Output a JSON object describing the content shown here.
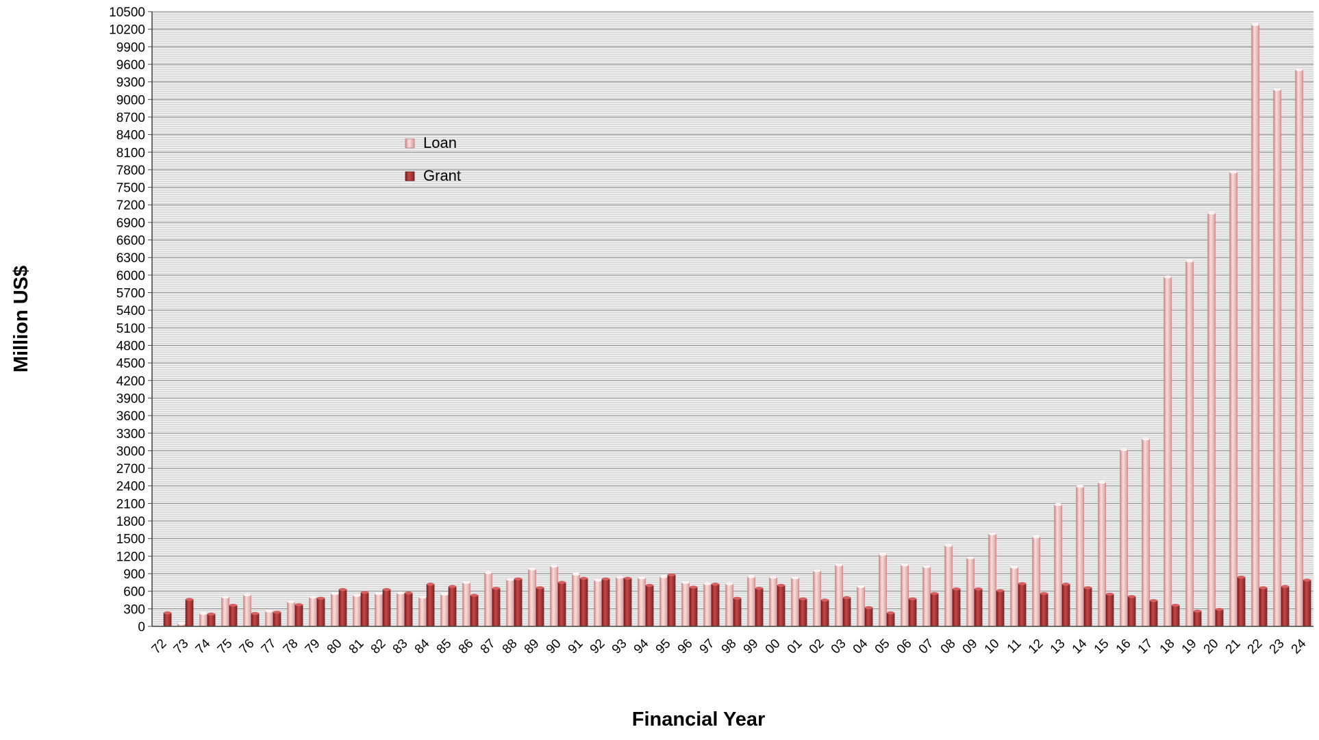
{
  "chart_data": {
    "type": "bar",
    "xlabel": "Financial Year",
    "ylabel": "Million US$",
    "ylim": [
      0,
      10500
    ],
    "y_ticks": [
      0,
      300,
      600,
      900,
      1200,
      1500,
      1800,
      2100,
      2400,
      2700,
      3000,
      3300,
      3600,
      3900,
      4200,
      4500,
      4800,
      5100,
      5400,
      5700,
      6000,
      6300,
      6600,
      6900,
      7200,
      7500,
      7800,
      8100,
      8400,
      8700,
      9000,
      9300,
      9600,
      9900,
      10200,
      10500
    ],
    "grid": true,
    "legend_position": "upper-left inside",
    "categories": [
      "72",
      "73",
      "74",
      "75",
      "76",
      "77",
      "78",
      "79",
      "80",
      "81",
      "82",
      "83",
      "84",
      "85",
      "86",
      "87",
      "88",
      "89",
      "90",
      "91",
      "92",
      "93",
      "94",
      "95",
      "96",
      "97",
      "98",
      "99",
      "00",
      "01",
      "02",
      "03",
      "04",
      "05",
      "06",
      "07",
      "08",
      "09",
      "10",
      "11",
      "12",
      "13",
      "14",
      "15",
      "16",
      "17",
      "18",
      "19",
      "20",
      "21",
      "22",
      "23",
      "24"
    ],
    "series": [
      {
        "name": "Loan",
        "color": "#e8a8a8",
        "values": [
          0,
          50,
          220,
          500,
          540,
          260,
          420,
          500,
          560,
          530,
          560,
          570,
          500,
          550,
          750,
          920,
          800,
          980,
          1030,
          890,
          790,
          840,
          830,
          850,
          750,
          730,
          730,
          850,
          840,
          830,
          950,
          1050,
          680,
          1230,
          1050,
          1020,
          1380,
          1170,
          1580,
          1010,
          1530,
          2080,
          2390,
          2460,
          3020,
          3200,
          5970,
          6240,
          7060,
          7760,
          10280,
          9170,
          9510
        ]
      },
      {
        "name": "Grant",
        "color": "#a82e2e",
        "values": [
          230,
          460,
          210,
          360,
          220,
          240,
          370,
          480,
          630,
          580,
          630,
          570,
          720,
          680,
          530,
          650,
          810,
          660,
          750,
          820,
          810,
          820,
          700,
          880,
          670,
          720,
          480,
          650,
          700,
          470,
          450,
          490,
          320,
          230,
          470,
          560,
          640,
          640,
          610,
          730,
          560,
          720,
          660,
          550,
          510,
          440,
          360,
          260,
          290,
          840,
          660,
          680,
          790
        ]
      }
    ]
  }
}
